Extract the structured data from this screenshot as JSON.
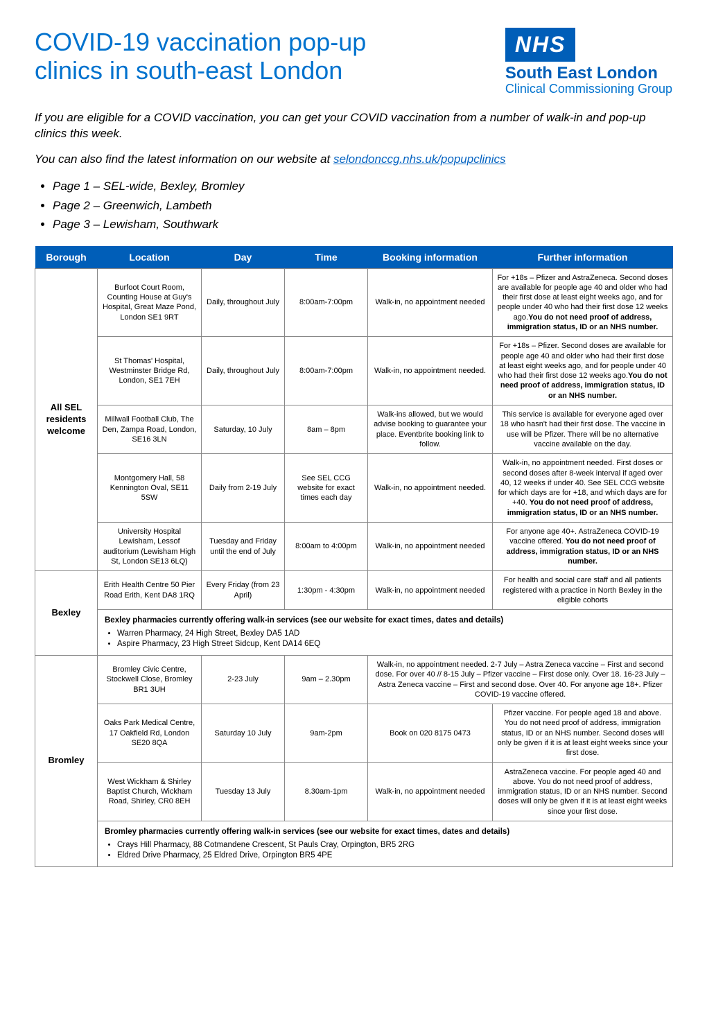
{
  "title_line1": "COVID-19 vaccination pop-up",
  "title_line2": "clinics in south-east London",
  "logo": {
    "nhs": "NHS",
    "l1": "South East London",
    "l2": "Clinical Commissioning Group"
  },
  "intro1": "If you are eligible for a COVID vaccination, you can get your COVID vaccination from a number of walk-in and pop-up clinics this week.",
  "intro2_pre": "You can also find the latest information on our website at ",
  "intro2_link": "selondonccg.nhs.uk/popupclinics",
  "pages": [
    "Page 1 – SEL-wide, Bexley, Bromley",
    "Page 2 – Greenwich, Lambeth",
    "Page 3 – Lewisham, Southwark"
  ],
  "headers": [
    "Borough",
    "Location",
    "Day",
    "Time",
    "Booking information",
    "Further information"
  ],
  "boroughs": [
    {
      "name": "All SEL residents welcome",
      "rows": [
        {
          "loc": "Burfoot Court Room, Counting House at Guy's Hospital, Great Maze Pond, London SE1 9RT",
          "day": "Daily, throughout July",
          "time": "8:00am-7:00pm",
          "book": "Walk-in, no appointment needed",
          "info": "For +18s – Pfizer and AstraZeneca. Second doses are available for people age 40 and older who had their first dose at least eight weeks ago, and for people under 40 who had their first dose 12 weeks ago.<b>You do not need proof of address, immigration status, ID or an NHS number.</b>"
        },
        {
          "loc": "St Thomas' Hospital, Westminster Bridge Rd, London, SE1 7EH",
          "day": "Daily, throughout July",
          "time": "8:00am-7:00pm",
          "book": "Walk-in, no appointment needed.",
          "info": "For +18s – Pfizer. Second doses are available for people age 40 and older who had their first dose at least eight weeks ago, and for people under 40 who had their first dose 12 weeks ago.<b>You do not need proof of address, immigration status, ID or an NHS number.</b>"
        },
        {
          "loc": "Millwall Football Club, The Den, Zampa Road, London, SE16 3LN",
          "day": "Saturday, 10 July",
          "time": "8am – 8pm",
          "book": "Walk-ins allowed, but we would advise booking to guarantee your place. Eventbrite booking link to follow.",
          "info": "This service is available for everyone aged over 18 who hasn't had their first dose. The vaccine in use will be Pfizer. There will be no alternative vaccine available on the day."
        },
        {
          "loc": "Montgomery Hall, 58 Kennington Oval, SE11 5SW",
          "day": "Daily from 2-19 July",
          "time": "See SEL CCG website for exact times each day",
          "book": "Walk-in, no appointment needed.",
          "info": "Walk-in, no appointment needed. First doses or second doses after 8-week interval if aged over 40, 12 weeks if under 40. See SEL CCG website for which days are for +18, and which days are for +40. <b>You do not need proof of address, immigration status, ID or an NHS number.</b>"
        },
        {
          "loc": "University Hospital Lewisham, Lessof auditorium (Lewisham High St, London SE13 6LQ)",
          "day": "Tuesday and Friday until the end of July",
          "time": "8:00am to 4:00pm",
          "book": "Walk-in, no appointment needed",
          "info": "For anyone age 40+. AstraZeneca COVID-19 vaccine offered. <b>You do not need proof of address, immigration status, ID or an NHS number.</b>"
        }
      ]
    },
    {
      "name": "Bexley",
      "rows": [
        {
          "loc": "Erith Health Centre 50 Pier Road Erith, Kent DA8 1RQ",
          "day": "Every Friday (from 23 April)",
          "time": "1:30pm - 4:30pm",
          "book": "Walk-in, no appointment needed",
          "info": "For health and social care staff and all patients registered with a practice in North Bexley in the eligible cohorts"
        }
      ],
      "sub": {
        "title": "Bexley pharmacies currently offering walk-in services (see our website for exact times, dates and details)",
        "items": [
          "Warren Pharmacy, 24 High Street, Bexley DA5 1AD",
          "Aspire Pharmacy, 23 High Street Sidcup, Kent DA14 6EQ"
        ]
      }
    },
    {
      "name": "Bromley",
      "rows": [
        {
          "loc": "Bromley Civic Centre, Stockwell Close, Bromley BR1 3UH",
          "day": "2-23 July",
          "time": "9am – 2.30pm",
          "book_span": true,
          "merged": "Walk-in, no appointment needed. 2-7 July – Astra Zeneca vaccine – First and second dose. For over 40 // 8-15 July – Pfizer vaccine – First dose only. Over 18. 16-23 July – Astra Zeneca vaccine – First and second dose. Over 40. For anyone age 18+. Pfizer COVID-19 vaccine offered."
        },
        {
          "loc": "Oaks Park Medical Centre, 17 Oakfield Rd, London SE20 8QA",
          "day": "Saturday 10 July",
          "time": "9am-2pm",
          "book": "Book on 020 8175 0473",
          "info": "Pfizer vaccine. For people aged 18 and above. You do not need proof of address, immigration status, ID or an NHS number. Second doses will only be given if it is at least eight weeks since your first dose."
        },
        {
          "loc": "West Wickham & Shirley Baptist Church, Wickham Road, Shirley, CR0 8EH",
          "day": "Tuesday 13 July",
          "time": "8.30am-1pm",
          "book": "Walk-in, no appointment needed",
          "info": "AstraZeneca vaccine. For people aged 40 and above. You do not need proof of address, immigration status, ID or an NHS number. Second doses will only be given if it is at least eight weeks since your first dose."
        }
      ],
      "sub": {
        "title": "Bromley pharmacies currently offering walk-in services (see our website for exact times, dates and details)",
        "items": [
          "Crays Hill Pharmacy, 88 Cotmandene Crescent, St Pauls Cray, Orpington, BR5 2RG",
          "Eldred Drive Pharmacy, 25 Eldred Drive, Orpington BR5 4PE"
        ]
      }
    }
  ]
}
